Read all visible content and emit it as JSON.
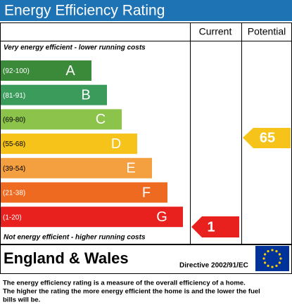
{
  "header": {
    "title": "Energy Efficiency Rating"
  },
  "columns": [
    "Current",
    "Potential"
  ],
  "top_note": "Very energy efficient - lower running costs",
  "bottom_note": "Not energy efficient - higher running costs",
  "bands": [
    {
      "range": "(92-100)",
      "letter": "A"
    },
    {
      "range": "(81-91)",
      "letter": "B"
    },
    {
      "range": "(69-80)",
      "letter": "C"
    },
    {
      "range": "(55-68)",
      "letter": "D"
    },
    {
      "range": "(39-54)",
      "letter": "E"
    },
    {
      "range": "(21-38)",
      "letter": "F"
    },
    {
      "range": "(1-20)",
      "letter": "G"
    }
  ],
  "current": 1,
  "potential": 65,
  "region": "England & Wales",
  "directive": "Directive 2002/91/EC",
  "footer": [
    "The energy efficiency rating is a measure of the overall efficiency of a home.",
    "The higher the rating the more energy efficient the home is and the lower the fuel",
    "bills will be."
  ]
}
